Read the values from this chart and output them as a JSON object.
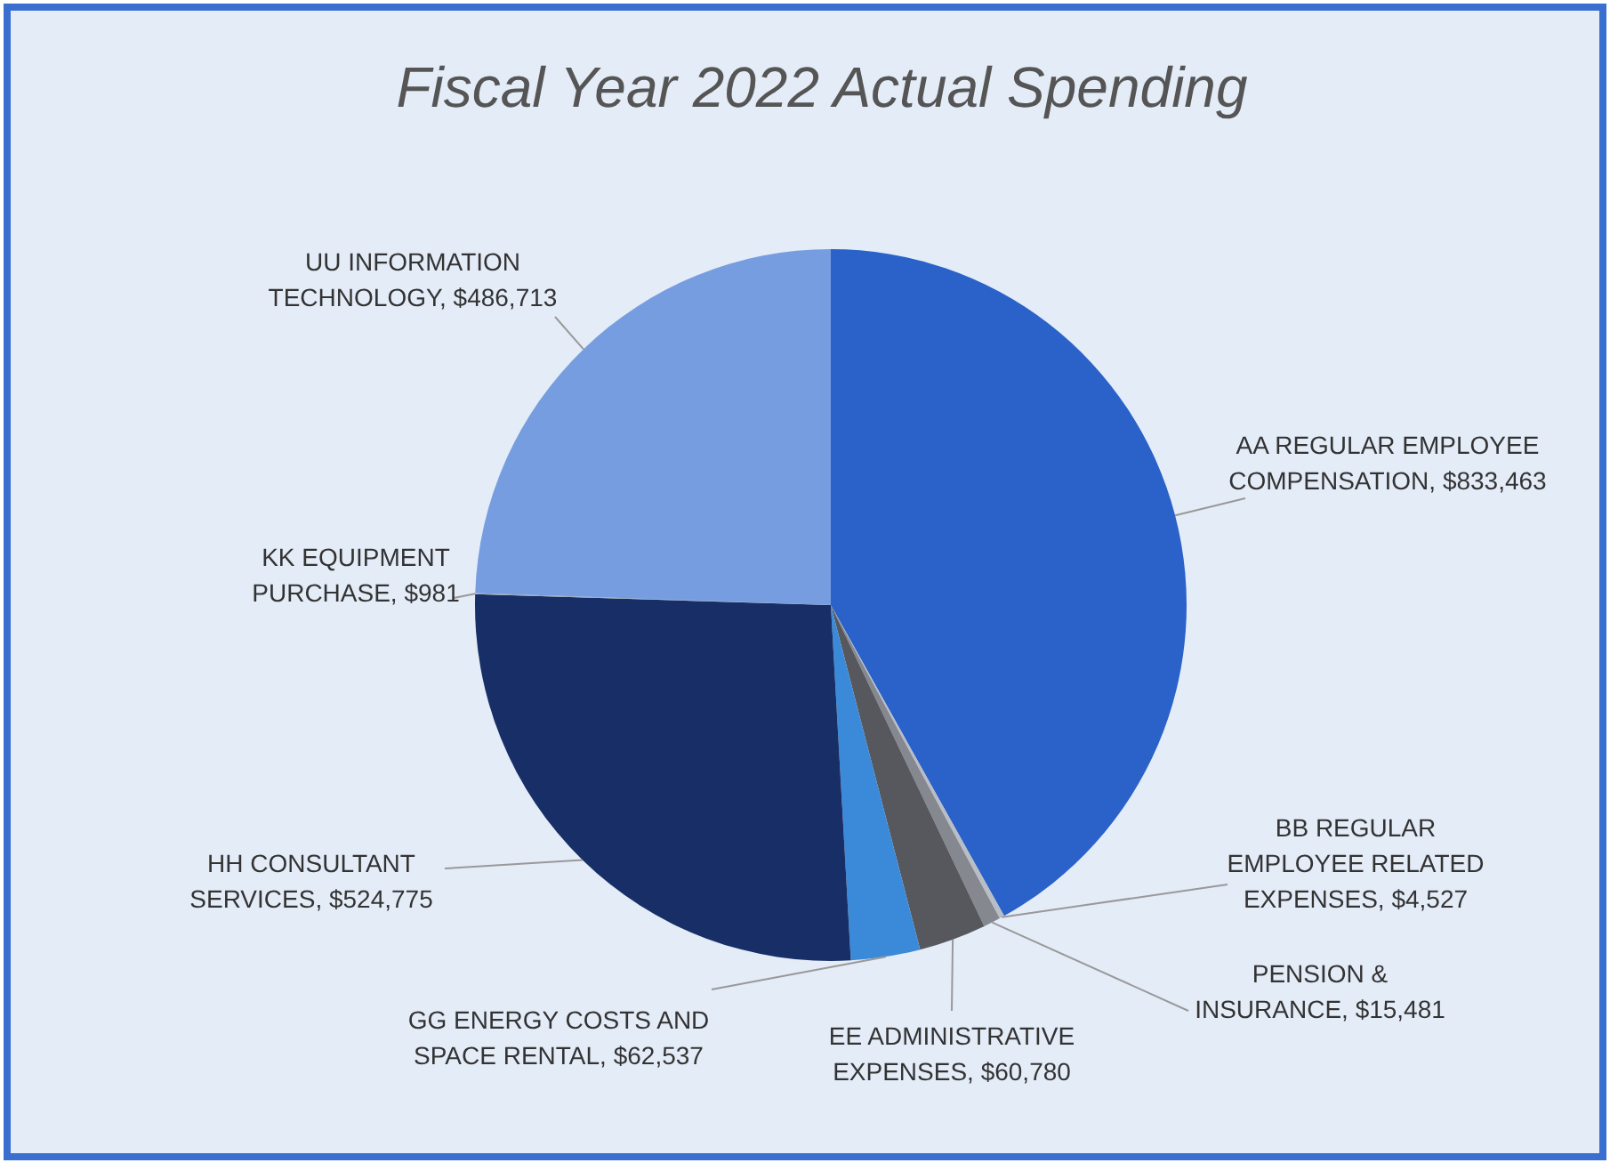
{
  "chart_data": {
    "type": "pie",
    "title": "Fiscal Year 2022 Actual Spending",
    "categories": [
      "AA REGULAR EMPLOYEE COMPENSATION",
      "BB REGULAR EMPLOYEE RELATED EXPENSES",
      "PENSION & INSURANCE",
      "EE ADMINISTRATIVE EXPENSES",
      "GG ENERGY COSTS AND SPACE RENTAL",
      "HH CONSULTANT SERVICES",
      "KK EQUIPMENT PURCHASE",
      "UU INFORMATION TECHNOLOGY"
    ],
    "values": [
      833463,
      4527,
      15481,
      60780,
      62537,
      524775,
      981,
      486713
    ],
    "value_labels": [
      "$833,463",
      "$4,527",
      "$15,481",
      "$60,780",
      "$62,537",
      "$524,775",
      "$981",
      "$486,713"
    ],
    "colors": [
      "#2a62c9",
      "#b9bdc5",
      "#85888e",
      "#56585d",
      "#3b8ad9",
      "#172f66",
      "#9aa6b8",
      "#769ddf"
    ]
  }
}
